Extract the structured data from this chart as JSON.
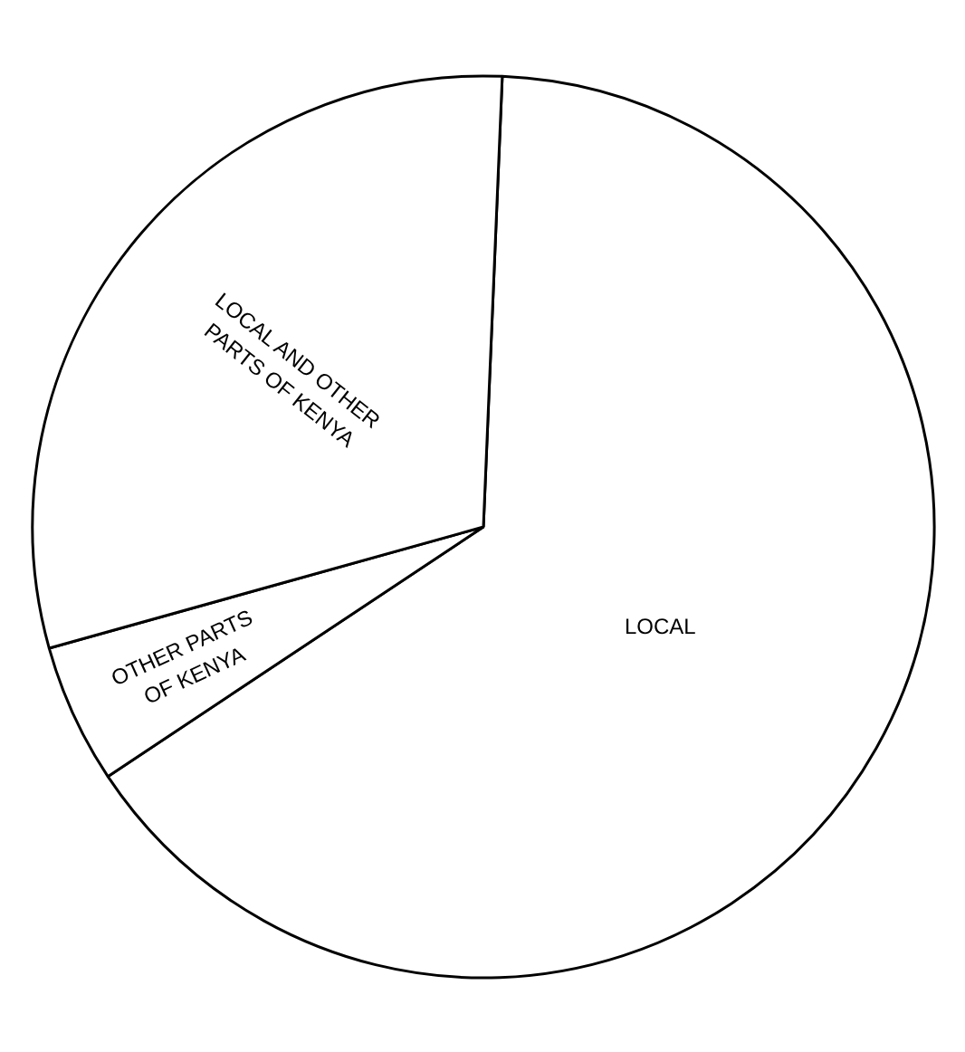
{
  "chart_data": {
    "type": "pie",
    "categories": [
      "LOCAL",
      "OTHER PARTS OF KENYA",
      "LOCAL AND OTHER PARTS OF KENYA"
    ],
    "values": [
      65,
      5,
      30
    ],
    "colors": [
      "#ffffff",
      "#ffffff",
      "#ffffff"
    ]
  }
}
